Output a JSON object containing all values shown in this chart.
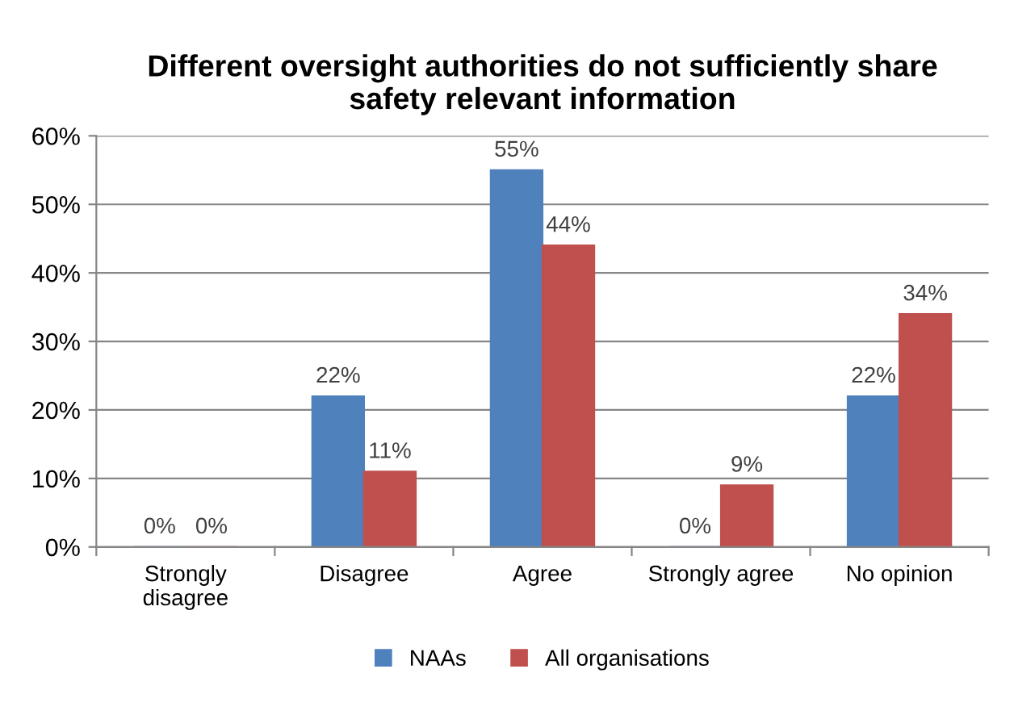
{
  "chart_data": {
    "type": "bar",
    "title": "Different oversight authorities do not sufficiently share\nsafety relevant information",
    "categories": [
      "Strongly\ndisagree",
      "Disagree",
      "Agree",
      "Strongly agree",
      "No opinion"
    ],
    "series": [
      {
        "name": "NAAs",
        "color": "#4f81bd",
        "values": [
          0,
          22,
          55,
          0,
          22
        ],
        "value_labels": [
          "0%",
          "22%",
          "55%",
          "0%",
          "22%"
        ]
      },
      {
        "name": "All organisations",
        "color": "#c0504d",
        "values": [
          0,
          11,
          44,
          9,
          34
        ],
        "value_labels": [
          "0%",
          "11%",
          "44%",
          "9%",
          "34%"
        ]
      }
    ],
    "ylim": [
      0,
      60
    ],
    "yticks": [
      {
        "value": 0,
        "label": "0%"
      },
      {
        "value": 10,
        "label": "10%"
      },
      {
        "value": 20,
        "label": "20%"
      },
      {
        "value": 30,
        "label": "30%"
      },
      {
        "value": 40,
        "label": "40%"
      },
      {
        "value": 50,
        "label": "50%"
      },
      {
        "value": 60,
        "label": "60%"
      }
    ],
    "grid": "y",
    "legend": "bottom"
  }
}
